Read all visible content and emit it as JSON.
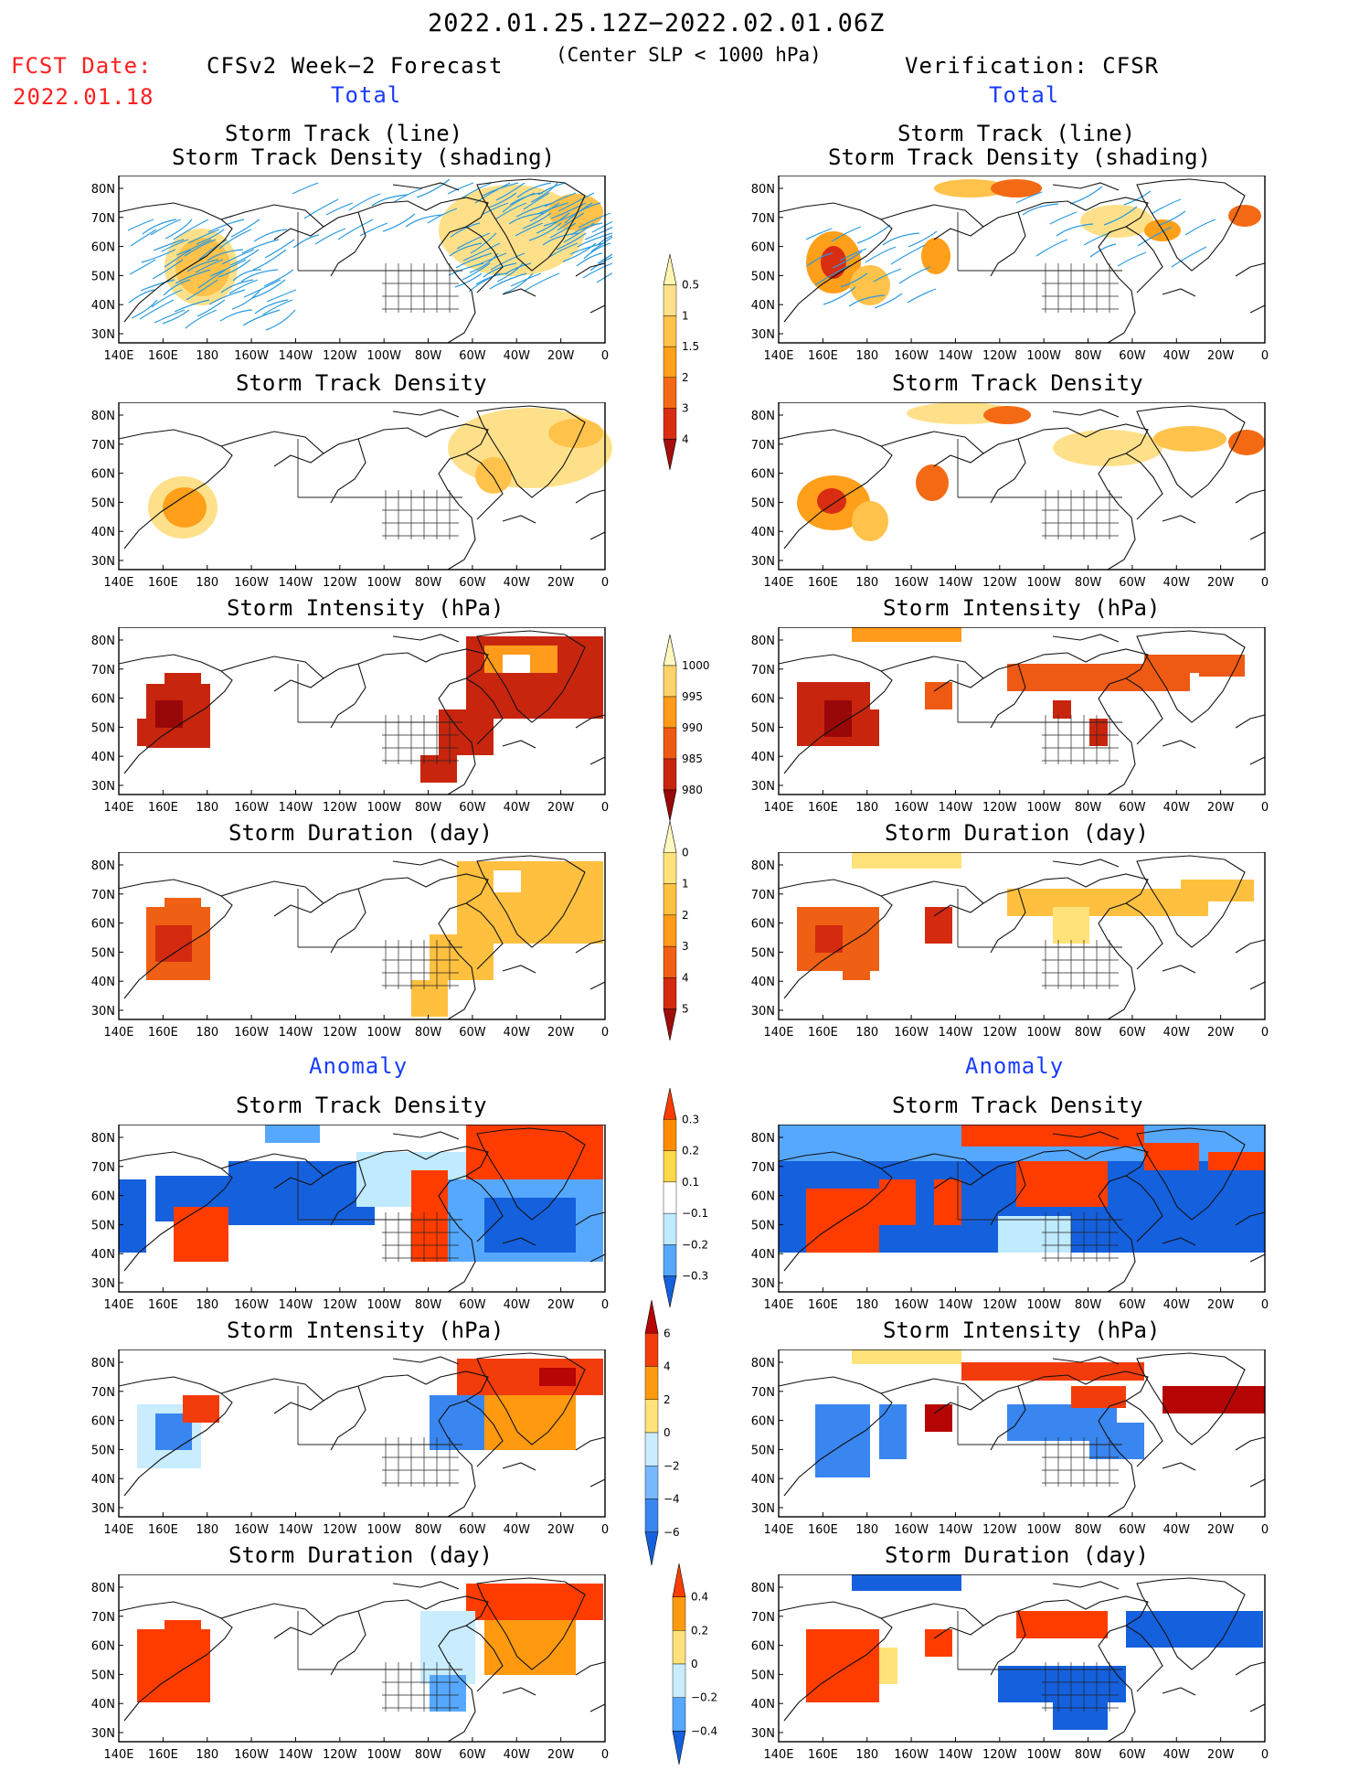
{
  "header": {
    "period": "2022.01.25.12Z−2022.02.01.06Z",
    "criterion": "(Center SLP < 1000 hPa)",
    "fcst_label": "FCST Date:",
    "fcst_date": "2022.01.18",
    "forecast_title": "CFSv2 Week−2 Forecast",
    "verification_title": "Verification: CFSR",
    "total_label": "Total",
    "anomaly_label": "Anomaly"
  },
  "panel_titles": {
    "track_line": "Storm Track (line)",
    "track_shading": "Storm Track Density (shading)",
    "density": "Storm Track Density",
    "intensity": "Storm Intensity (hPa)",
    "duration": "Storm Duration (day)"
  },
  "axes": {
    "lat_labels": [
      "80N",
      "70N",
      "60N",
      "50N",
      "40N",
      "30N"
    ],
    "lon_labels": [
      "140E",
      "160E",
      "180",
      "160W",
      "140W",
      "120W",
      "100W",
      "80W",
      "60W",
      "40W",
      "20W",
      "0"
    ]
  },
  "colorbars": {
    "density_total": {
      "labels": [
        "0.5",
        "1",
        "1.5",
        "2",
        "3",
        "4"
      ],
      "colors": [
        "#fff6b0",
        "#ffe08a",
        "#ffc24a",
        "#ff9f1a",
        "#f46a14",
        "#d92d12",
        "#a50f0f"
      ]
    },
    "intensity_total": {
      "labels": [
        "1000",
        "995",
        "990",
        "985",
        "980"
      ],
      "colors": [
        "#fff8c0",
        "#ffd36a",
        "#ff9a1a",
        "#ee5a14",
        "#c8250f",
        "#990808"
      ]
    },
    "duration_total": {
      "labels": [
        "0",
        "1",
        "2",
        "3",
        "4",
        "5"
      ],
      "colors": [
        "#fff8c0",
        "#ffe27a",
        "#ffc040",
        "#ff9a1a",
        "#f06014",
        "#d32a10",
        "#a00c0c"
      ]
    },
    "density_anom": {
      "labels": [
        "0.3",
        "0.2",
        "0.1",
        "−0.1",
        "−0.2",
        "−0.3"
      ],
      "colors": [
        "#ff3c00",
        "#ff8c00",
        "#ffd84a",
        "#ffffff",
        "#bfeaff",
        "#56a8ff",
        "#1560dd"
      ]
    },
    "intensity_anom": {
      "labels": [
        "6",
        "4",
        "2",
        "0",
        "−2",
        "−4",
        "−6"
      ],
      "colors": [
        "#b50505",
        "#f23c0c",
        "#ff9a10",
        "#ffe27a",
        "#c9ecff",
        "#78b8ff",
        "#3a86f0",
        "#1560dd"
      ]
    },
    "duration_anom": {
      "labels": [
        "0.4",
        "0.2",
        "0",
        "−0.2",
        "−0.4"
      ],
      "colors": [
        "#ff3c00",
        "#ff9a10",
        "#ffe27a",
        "#c9ecff",
        "#56a8ff",
        "#1560dd"
      ]
    }
  }
}
